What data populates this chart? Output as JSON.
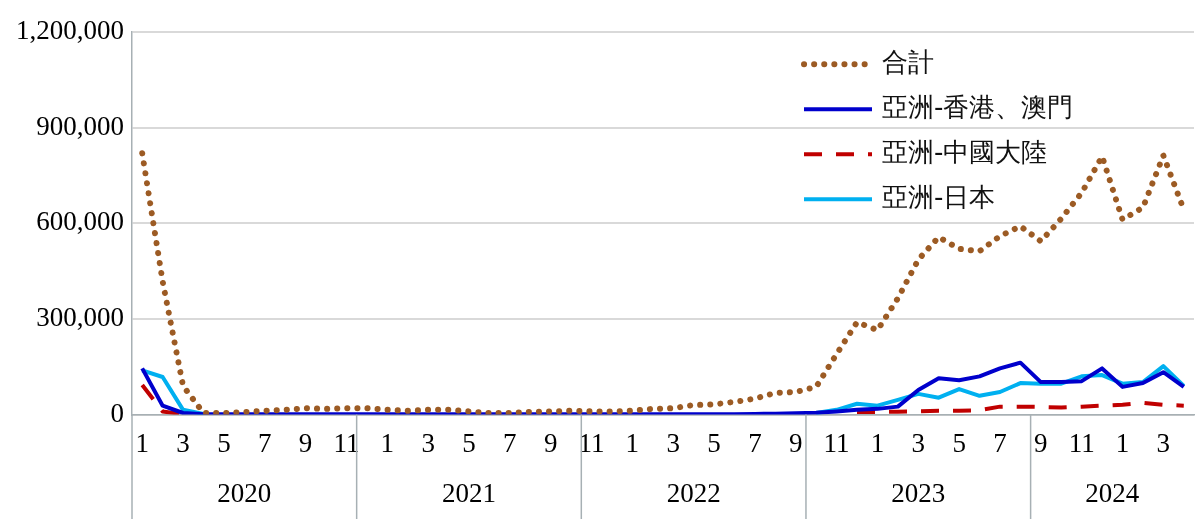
{
  "chart_data": {
    "type": "line",
    "categories": [
      "1",
      null,
      "3",
      null,
      "5",
      null,
      "7",
      null,
      "9",
      null,
      "11",
      null,
      "1",
      null,
      "3",
      null,
      "5",
      null,
      "7",
      null,
      "9",
      null,
      "11",
      null,
      "1",
      null,
      "3",
      null,
      "5",
      null,
      "7",
      null,
      "9",
      null,
      "11",
      null,
      "1",
      null,
      "3",
      null,
      "5",
      null,
      "7",
      null,
      "9",
      null,
      "11",
      null,
      "1",
      null,
      "3",
      null
    ],
    "annotations": [
      "2020",
      "2021",
      "2022",
      "2023",
      "2024"
    ],
    "series": [
      {
        "name": "合計",
        "color": "#9c5b24",
        "line_style": "dotted",
        "values": [
          820000,
          418000,
          90000,
          5000,
          5000,
          8000,
          12000,
          15000,
          20000,
          18000,
          20000,
          20000,
          15000,
          12000,
          15000,
          15000,
          10000,
          5000,
          5000,
          8000,
          10000,
          12000,
          10000,
          10000,
          12000,
          18000,
          20000,
          30000,
          32000,
          40000,
          50000,
          68000,
          71000,
          87000,
          190000,
          290000,
          265000,
          365000,
          486000,
          557000,
          520000,
          513000,
          560000,
          591000,
          544000,
          615000,
          696000,
          810000,
          612000,
          650000,
          813000,
          643000
        ]
      },
      {
        "name": "亞洲-香港、澳門",
        "color": "#0000cc",
        "line_style": "solid",
        "values": [
          145000,
          28000,
          5000,
          1000,
          1000,
          1000,
          1000,
          1000,
          1000,
          1000,
          1000,
          1000,
          1000,
          1000,
          1000,
          1000,
          1000,
          1000,
          1000,
          1000,
          1000,
          1000,
          1000,
          1000,
          1000,
          1000,
          1000,
          1000,
          1000,
          1000,
          2000,
          3000,
          4000,
          6000,
          10000,
          15000,
          18000,
          25000,
          77000,
          114000,
          108000,
          120000,
          145000,
          163000,
          102000,
          102000,
          105000,
          145000,
          87000,
          99000,
          133000,
          87000
        ]
      },
      {
        "name": "亞洲-中國大陸",
        "color": "#c00000",
        "line_style": "dashed",
        "values": [
          93000,
          10000,
          1000,
          null,
          null,
          null,
          null,
          null,
          null,
          null,
          null,
          null,
          null,
          null,
          null,
          null,
          null,
          null,
          null,
          null,
          null,
          null,
          null,
          null,
          null,
          null,
          null,
          null,
          null,
          null,
          null,
          null,
          null,
          null,
          null,
          8000,
          8000,
          9000,
          10000,
          12000,
          12000,
          14000,
          25000,
          25000,
          24000,
          22000,
          25000,
          28000,
          31000,
          37000,
          31000,
          28000
        ]
      },
      {
        "name": "亞洲-日本",
        "color": "#00b0f0",
        "line_style": "solid",
        "values": [
          139000,
          118000,
          15000,
          2000,
          null,
          null,
          null,
          null,
          null,
          null,
          null,
          null,
          null,
          null,
          null,
          null,
          null,
          null,
          null,
          null,
          null,
          null,
          null,
          null,
          null,
          null,
          null,
          null,
          null,
          null,
          null,
          null,
          null,
          5000,
          15000,
          34000,
          28000,
          46000,
          65000,
          53000,
          80000,
          59000,
          71000,
          99000,
          97000,
          97000,
          120000,
          124000,
          97000,
          102000,
          152000,
          90000
        ]
      }
    ],
    "ylim": [
      0,
      1200000
    ],
    "yticks": [
      0,
      {
        "value": 300000,
        "label": "300,000"
      },
      {
        "value": 600000,
        "label": "600,000"
      },
      {
        "value": 900000,
        "label": "900,000"
      },
      {
        "value": 1200000,
        "label": "1,200,000"
      }
    ],
    "grid": "y",
    "legend": "top right"
  }
}
